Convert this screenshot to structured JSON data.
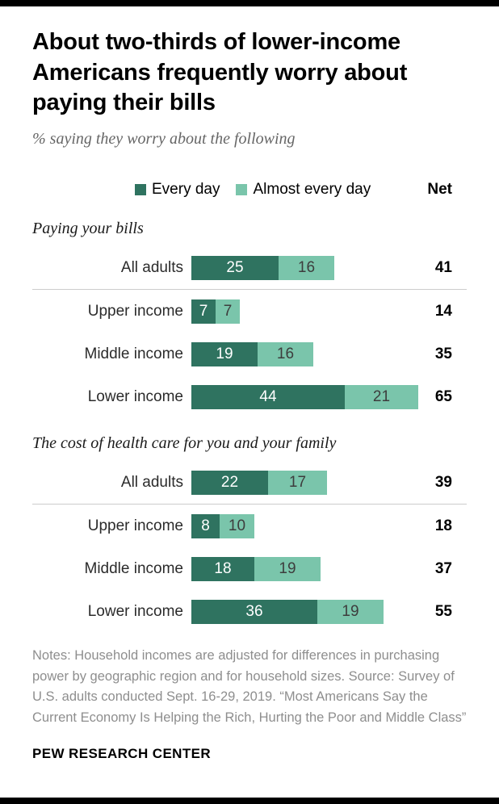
{
  "header": {
    "title": "About two-thirds of lower-income Americans frequently worry about paying their bills",
    "subtitle": "% saying they worry about the following"
  },
  "legend": {
    "items": [
      {
        "label": "Every day",
        "color": "#2f7360"
      },
      {
        "label": "Almost every day",
        "color": "#7ac5ab"
      }
    ],
    "net_label": "Net"
  },
  "chart_data": {
    "type": "bar",
    "orientation": "horizontal",
    "stacked": true,
    "series_names": [
      "Every day",
      "Almost every day"
    ],
    "xlim": [
      0,
      65
    ],
    "colors": {
      "dark": "#2f7360",
      "light": "#7ac5ab",
      "value_on_dark": "#ffffff",
      "value_on_light": "#3d3d3d"
    },
    "sections": [
      {
        "title": "Paying your bills",
        "rows": [
          {
            "label": "All adults",
            "values": [
              25,
              16
            ],
            "net": 41,
            "divider_after": true
          },
          {
            "label": "Upper income",
            "values": [
              7,
              7
            ],
            "net": 14,
            "divider_after": false
          },
          {
            "label": "Middle income",
            "values": [
              19,
              16
            ],
            "net": 35,
            "divider_after": false
          },
          {
            "label": "Lower income",
            "values": [
              44,
              21
            ],
            "net": 65,
            "divider_after": false
          }
        ]
      },
      {
        "title": "The cost of health care for you and your family",
        "rows": [
          {
            "label": "All adults",
            "values": [
              22,
              17
            ],
            "net": 39,
            "divider_after": true
          },
          {
            "label": "Upper income",
            "values": [
              8,
              10
            ],
            "net": 18,
            "divider_after": false
          },
          {
            "label": "Middle income",
            "values": [
              18,
              19
            ],
            "net": 37,
            "divider_after": false
          },
          {
            "label": "Lower income",
            "values": [
              36,
              19
            ],
            "net": 55,
            "divider_after": false
          }
        ]
      }
    ]
  },
  "notes": {
    "text": "Notes: Household incomes are adjusted for differences in purchasing power by geographic region and for household sizes. Source: Survey of U.S. adults conducted Sept. 16-29, 2019. “Most Americans Say the Current Economy Is Helping the Rich, Hurting the Poor and Middle Class”"
  },
  "footer": {
    "brand": "PEW RESEARCH CENTER"
  }
}
